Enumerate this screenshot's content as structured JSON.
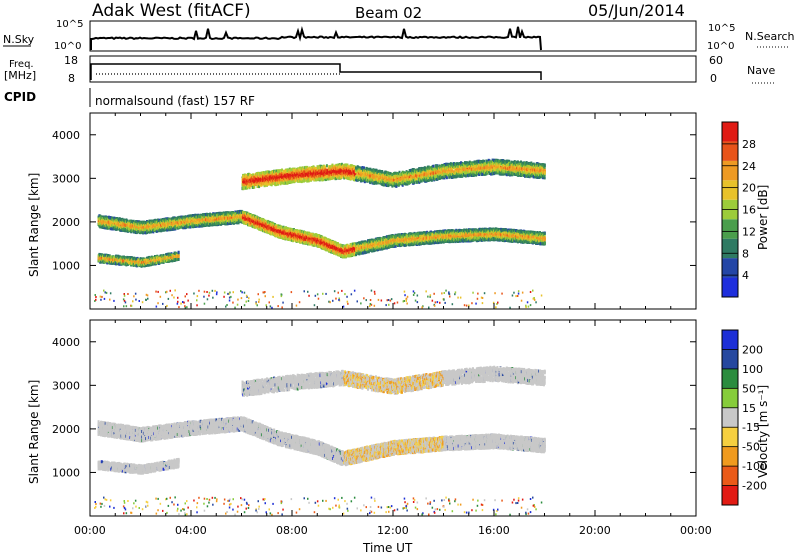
{
  "header": {
    "title": "Adak West (fitACF)",
    "beam": "Beam 02",
    "date": "05/Jun/2014"
  },
  "strip_panels": {
    "nsky_label": "N.Sky",
    "nsky_ticks": [
      "10^5",
      "10^0"
    ],
    "nsearch_label": "N.Search",
    "nsearch_ticks": [
      "10^5",
      "10^0"
    ],
    "freq_label_line1": "Freq.",
    "freq_label_line2": "[MHz]",
    "freq_ticks": [
      "18",
      "8"
    ],
    "nave_label": "Nave",
    "nave_ticks": [
      "60",
      "0"
    ],
    "cpid_label": "CPID",
    "cpid_text": "normalsound (fast) 157 RF"
  },
  "colors": {
    "bg": "#ffffff",
    "axis": "#000000",
    "power_scale": [
      "#1f2fdc",
      "#2446a6",
      "#2f7a63",
      "#4a9e4c",
      "#9ccc3a",
      "#e8c22a",
      "#ee9a24",
      "#e8541a",
      "#e01b14"
    ],
    "velocity_scale": [
      "#e21b14",
      "#ea5a18",
      "#f09a1e",
      "#f6cf40",
      "#c8c8c8",
      "#86cc3a",
      "#2b8c3e",
      "#26489f",
      "#1d2fd6"
    ]
  },
  "chart_data": [
    {
      "type": "heatmap",
      "name": "power",
      "xlabel": "",
      "ylabel": "Slant Range [km]",
      "ylim": [
        0,
        4500
      ],
      "xlim": [
        "00:00",
        "00:00"
      ],
      "yticks": [
        "1000",
        "2000",
        "3000",
        "4000"
      ],
      "colorbar_label": "Power [dB]",
      "colorbar_ticks": [
        "4",
        "8",
        "12",
        "16",
        "20",
        "24",
        "28"
      ],
      "data_end": "18:00",
      "features": [
        {
          "series": "F-region band",
          "points": [
            [
              0.3,
              2050
            ],
            [
              2,
              1900
            ],
            [
              4,
              2050
            ],
            [
              6,
              2150
            ],
            [
              7.5,
              1800
            ],
            [
              9,
              1600
            ],
            [
              10,
              1350
            ],
            [
              12,
              1600
            ],
            [
              14,
              1700
            ],
            [
              16,
              1750
            ],
            [
              18,
              1650
            ]
          ]
        },
        {
          "series": "upper band",
          "points": [
            [
              6,
              2950
            ],
            [
              8,
              3100
            ],
            [
              10,
              3200
            ],
            [
              12,
              3000
            ],
            [
              14,
              3200
            ],
            [
              16,
              3300
            ],
            [
              18,
              3200
            ]
          ]
        },
        {
          "series": "lower band",
          "points": [
            [
              0.3,
              1200
            ],
            [
              2,
              1100
            ],
            [
              3.5,
              1250
            ]
          ]
        }
      ]
    },
    {
      "type": "heatmap",
      "name": "velocity",
      "xlabel": "Time UT",
      "ylabel": "Slant Range [km]",
      "ylim": [
        0,
        4500
      ],
      "xticks": [
        "00:00",
        "04:00",
        "08:00",
        "12:00",
        "16:00",
        "20:00",
        "00:00"
      ],
      "yticks": [
        "1000",
        "2000",
        "3000",
        "4000"
      ],
      "colorbar_label": "Velocity [m s⁻¹]",
      "colorbar_ticks": [
        "200",
        "100",
        "50",
        "15",
        "-15",
        "-50",
        "-100",
        "-200"
      ],
      "data_end": "18:00"
    }
  ]
}
